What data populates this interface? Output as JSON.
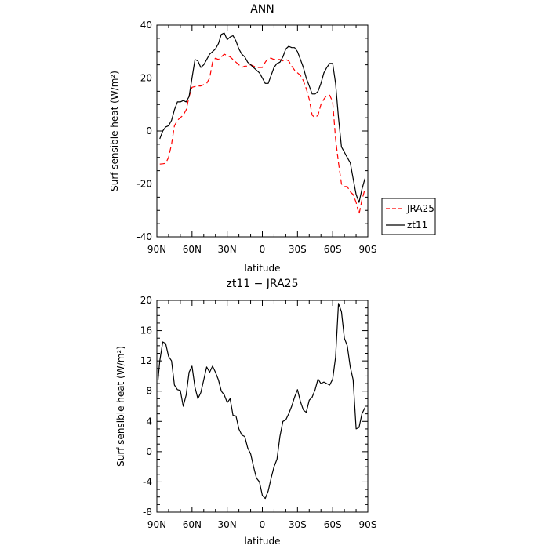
{
  "chart_data": [
    {
      "type": "line",
      "title": "ANN",
      "xlabel": "latitude",
      "ylabel": "Surf sensible heat (W/m²)",
      "x_ticks": [
        "90N",
        "60N",
        "30N",
        "0",
        "30S",
        "60S",
        "90S"
      ],
      "y_ticks": [
        "-40",
        "-20",
        "0",
        "20",
        "40"
      ],
      "xlim": [
        90,
        -90
      ],
      "ylim": [
        -40,
        40
      ],
      "legend": {
        "placement": "right",
        "entries": [
          "JRA25",
          "zt11"
        ]
      },
      "series": [
        {
          "name": "JRA25",
          "color": "#ff0000",
          "dash": "dashed",
          "x": [
            87.5,
            85,
            82.5,
            80,
            77.5,
            75,
            72.5,
            70,
            67.5,
            65,
            62.5,
            60,
            57.5,
            55,
            52.5,
            50,
            47.5,
            45,
            42.5,
            40,
            37.5,
            35,
            32.5,
            30,
            27.5,
            25,
            22.5,
            20,
            17.5,
            15,
            12.5,
            10,
            7.5,
            5,
            2.5,
            0,
            -2.5,
            -5,
            -7.5,
            -10,
            -12.5,
            -15,
            -17.5,
            -20,
            -22.5,
            -25,
            -27.5,
            -30,
            -32.5,
            -35,
            -37.5,
            -40,
            -42.5,
            -45,
            -47.5,
            -50,
            -52.5,
            -55,
            -57.5,
            -60,
            -62.5,
            -65,
            -67.5,
            -70,
            -72.5,
            -75,
            -77.5,
            -80,
            -82.5,
            -85,
            -87.5
          ],
          "y": [
            -12.5,
            -12.4,
            -12.2,
            -10,
            -5,
            2,
            4,
            5,
            6,
            8,
            13,
            16.5,
            16.8,
            17,
            17,
            17.5,
            18,
            20,
            26,
            27.5,
            27,
            28,
            29,
            28.5,
            28,
            27,
            26,
            25,
            24,
            24.5,
            24.5,
            25,
            24.5,
            24,
            24,
            24,
            26,
            27.5,
            27.5,
            27,
            27,
            27,
            26.5,
            27,
            26.5,
            24.5,
            23,
            22,
            21,
            19,
            16,
            12,
            6,
            5,
            6,
            10,
            12,
            13.5,
            13.5,
            11,
            -3,
            -12,
            -20,
            -21,
            -21,
            -23,
            -24,
            -27,
            -31.5,
            -26,
            -22
          ]
        },
        {
          "name": "zt11",
          "color": "#000000",
          "dash": "solid",
          "x": [
            87.5,
            85,
            82.5,
            80,
            77.5,
            75,
            72.5,
            70,
            67.5,
            65,
            62.5,
            60,
            57.5,
            55,
            52.5,
            50,
            47.5,
            45,
            42.5,
            40,
            37.5,
            35,
            32.5,
            30,
            27.5,
            25,
            22.5,
            20,
            17.5,
            15,
            12.5,
            10,
            7.5,
            5,
            2.5,
            0,
            -2.5,
            -5,
            -7.5,
            -10,
            -12.5,
            -15,
            -17.5,
            -20,
            -22.5,
            -25,
            -27.5,
            -30,
            -32.5,
            -35,
            -37.5,
            -40,
            -42.5,
            -45,
            -47.5,
            -50,
            -52.5,
            -55,
            -57.5,
            -60,
            -62.5,
            -65,
            -67.5,
            -70,
            -72.5,
            -75,
            -77.5,
            -80,
            -82.5,
            -85,
            -87.5
          ],
          "y": [
            -3,
            0,
            1.5,
            2,
            4,
            8,
            11,
            11,
            11.5,
            11,
            13,
            20,
            27,
            26.5,
            24,
            25,
            27,
            29,
            30,
            31,
            33,
            36.5,
            37,
            34.5,
            35.5,
            36,
            34,
            31,
            29,
            28,
            26,
            25,
            24,
            23,
            22,
            20,
            18,
            18,
            21,
            24,
            25.5,
            26,
            28,
            31,
            32,
            31.5,
            31.5,
            30,
            27,
            24,
            20,
            17,
            14,
            14,
            15,
            18,
            22,
            24,
            25.5,
            25.5,
            18,
            5,
            -6,
            -8,
            -10,
            -12,
            -18,
            -24,
            -27,
            -22,
            -18
          ]
        }
      ]
    },
    {
      "type": "line",
      "title": "zt11 − JRA25",
      "xlabel": "latitude",
      "ylabel": "Surf sensible heat (W/m²)",
      "x_ticks": [
        "90N",
        "60N",
        "30N",
        "0",
        "30S",
        "60S",
        "90S"
      ],
      "y_ticks": [
        "-8",
        "-4",
        "0",
        "4",
        "8",
        "12",
        "16",
        "20"
      ],
      "xlim": [
        90,
        -90
      ],
      "ylim": [
        -8,
        20
      ],
      "series": [
        {
          "color": "#000000",
          "dash": "solid",
          "x": [
            89,
            87.5,
            85,
            82.5,
            80,
            77.5,
            75,
            72.5,
            70,
            67.5,
            65,
            62.5,
            60,
            57.5,
            55,
            52.5,
            50,
            47.5,
            45,
            42.5,
            40,
            37.5,
            35,
            32.5,
            30,
            27.5,
            25,
            22.5,
            20,
            17.5,
            15,
            12.5,
            10,
            7.5,
            5,
            2.5,
            0,
            -2.5,
            -5,
            -7.5,
            -10,
            -12.5,
            -15,
            -17.5,
            -20,
            -22.5,
            -25,
            -27.5,
            -30,
            -32.5,
            -35,
            -37.5,
            -40,
            -42.5,
            -45,
            -47.5,
            -50,
            -52.5,
            -55,
            -57.5,
            -60,
            -62.5,
            -65,
            -67.5,
            -70,
            -72.5,
            -75,
            -77.5,
            -80,
            -82.5,
            -85,
            -87.5
          ],
          "y": [
            9.5,
            12,
            14.5,
            14.3,
            12.6,
            12,
            8.8,
            8.2,
            8.1,
            6,
            7.5,
            10.5,
            11.3,
            8.5,
            7,
            7.8,
            9.5,
            11.2,
            10.5,
            11.3,
            10.5,
            9.5,
            8,
            7.5,
            6.5,
            7,
            4.8,
            4.7,
            3,
            2.2,
            2,
            0.5,
            -0.3,
            -2,
            -3.5,
            -4,
            -5.8,
            -6.2,
            -5.2,
            -3.5,
            -2,
            -1,
            2,
            4,
            4.2,
            5,
            6,
            7.2,
            8.2,
            6.6,
            5.5,
            5.2,
            6.8,
            7.2,
            8.2,
            9.6,
            9,
            9.2,
            9,
            8.8,
            9.6,
            12.5,
            19.6,
            18.5,
            15,
            14,
            11.2,
            9.5,
            3,
            3.2,
            5,
            5.8
          ]
        }
      ]
    }
  ]
}
